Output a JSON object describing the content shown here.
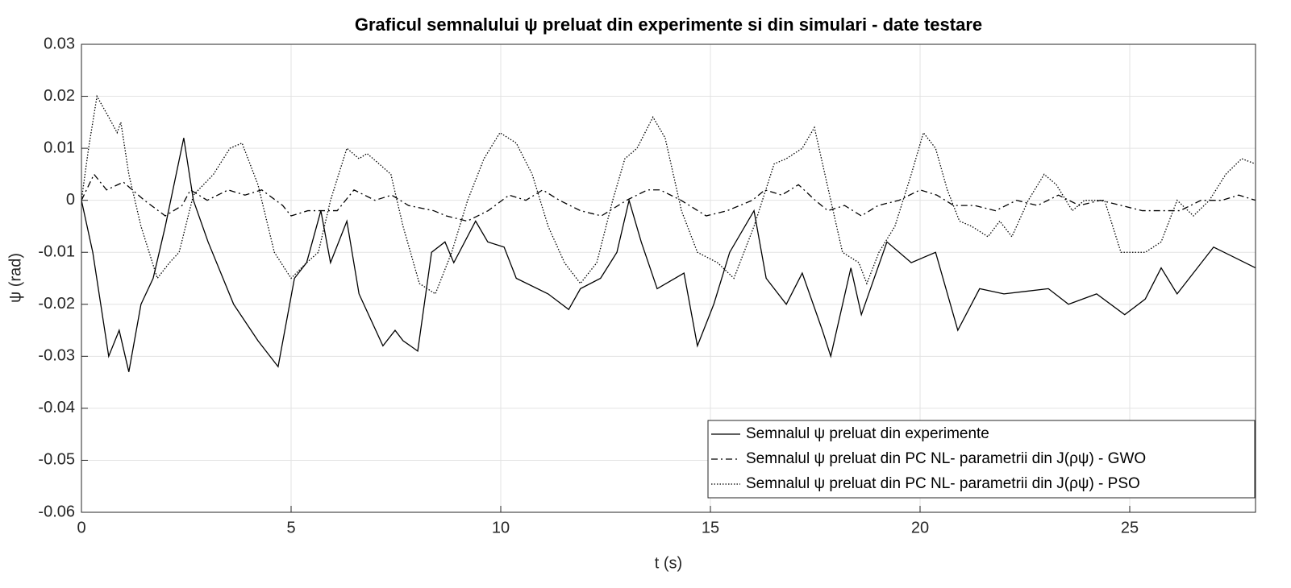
{
  "chart_data": {
    "type": "line",
    "title": "Graficul semnalului ψ preluat din experimente si din simulari - date testare",
    "xlabel": "t (s)",
    "ylabel": "ψ (rad)",
    "xlim": [
      0,
      28
    ],
    "ylim": [
      -0.06,
      0.03
    ],
    "xticks": [
      0,
      5,
      10,
      15,
      20,
      25
    ],
    "yticks": [
      -0.06,
      -0.05,
      -0.04,
      -0.03,
      -0.02,
      -0.01,
      0,
      0.01,
      0.02,
      0.03
    ],
    "grid": true,
    "legend": "lower right",
    "series": [
      {
        "name": "Semnalul ψ preluat din experimente",
        "color": "#000000",
        "linestyle": "solid",
        "x": [
          0,
          0.27,
          0.65,
          0.9,
          1.13,
          1.42,
          1.71,
          2.0,
          2.44,
          2.67,
          3.02,
          3.63,
          4.21,
          4.69,
          5.08,
          5.37,
          5.71,
          5.94,
          6.33,
          6.62,
          7.19,
          7.48,
          7.67,
          8.02,
          8.35,
          8.67,
          8.88,
          9.4,
          9.69,
          10.08,
          10.37,
          11.13,
          11.62,
          11.9,
          12.38,
          12.77,
          13.06,
          13.35,
          13.73,
          14.37,
          14.69,
          15.08,
          15.46,
          16.04,
          16.33,
          16.81,
          17.19,
          17.67,
          17.87,
          18.35,
          18.6,
          19.21,
          19.79,
          20.37,
          20.9,
          21.42,
          22.0,
          23.06,
          23.54,
          24.21,
          24.88,
          25.37,
          25.75,
          26.13,
          27.0,
          28
        ],
        "values": [
          0,
          -0.01,
          -0.03,
          -0.025,
          -0.033,
          -0.02,
          -0.015,
          -0.005,
          0.012,
          0.0,
          -0.008,
          -0.02,
          -0.027,
          -0.032,
          -0.015,
          -0.012,
          -0.002,
          -0.012,
          -0.004,
          -0.018,
          -0.028,
          -0.025,
          -0.027,
          -0.029,
          -0.01,
          -0.008,
          -0.012,
          -0.004,
          -0.008,
          -0.009,
          -0.015,
          -0.018,
          -0.021,
          -0.017,
          -0.015,
          -0.01,
          0.0,
          -0.008,
          -0.017,
          -0.014,
          -0.028,
          -0.02,
          -0.01,
          -0.002,
          -0.015,
          -0.02,
          -0.014,
          -0.025,
          -0.03,
          -0.013,
          -0.022,
          -0.008,
          -0.012,
          -0.01,
          -0.025,
          -0.017,
          -0.018,
          -0.017,
          -0.02,
          -0.018,
          -0.022,
          -0.019,
          -0.013,
          -0.018,
          -0.009,
          -0.013
        ]
      },
      {
        "name": "Semnalul ψ preluat din PC NL- parametrii din J(ρψ) - GWO",
        "color": "#000000",
        "linestyle": "dashdot",
        "x": [
          0,
          0.3,
          0.6,
          1.0,
          1.5,
          2.0,
          2.4,
          2.6,
          3.0,
          3.5,
          3.9,
          4.3,
          4.8,
          5.0,
          5.4,
          6.1,
          6.5,
          7.0,
          7.4,
          7.8,
          8.4,
          8.7,
          9.2,
          9.7,
          10.2,
          10.6,
          11.0,
          11.4,
          11.9,
          12.4,
          13.0,
          13.5,
          13.8,
          14.3,
          14.9,
          15.4,
          16.0,
          16.3,
          16.7,
          17.1,
          17.5,
          17.8,
          18.2,
          18.6,
          19.0,
          19.5,
          20.0,
          20.4,
          20.8,
          21.3,
          21.8,
          22.3,
          22.8,
          23.3,
          23.8,
          24.3,
          24.8,
          25.3,
          25.8,
          26.2,
          26.7,
          27.2,
          27.6,
          28
        ],
        "values": [
          0,
          0.005,
          0.002,
          0.0035,
          0.0,
          -0.003,
          -0.001,
          0.002,
          0.0,
          0.002,
          0.001,
          0.002,
          -0.001,
          -0.003,
          -0.002,
          -0.002,
          0.002,
          0.0,
          0.001,
          -0.001,
          -0.002,
          -0.003,
          -0.004,
          -0.002,
          0.001,
          0.0,
          0.002,
          0.0,
          -0.002,
          -0.003,
          0.0,
          0.002,
          0.002,
          0.0,
          -0.003,
          -0.002,
          0.0,
          0.002,
          0.001,
          0.003,
          0.0,
          -0.002,
          -0.001,
          -0.003,
          -0.001,
          0.0,
          0.002,
          0.001,
          -0.001,
          -0.001,
          -0.002,
          0.0,
          -0.001,
          0.001,
          -0.001,
          0.0,
          -0.001,
          -0.002,
          -0.002,
          -0.002,
          0.0,
          0.0,
          0.001,
          0.0
        ]
      },
      {
        "name": "Semnalul ψ preluat din PC NL- parametrii din J(ρψ) - PSO",
        "color": "#000000",
        "linestyle": "dotted",
        "x": [
          0,
          0.17,
          0.37,
          0.65,
          0.85,
          0.94,
          1.13,
          1.42,
          1.81,
          2.1,
          2.33,
          2.67,
          3.15,
          3.54,
          3.83,
          4.21,
          4.6,
          5.0,
          5.37,
          5.65,
          5.94,
          6.33,
          6.62,
          6.81,
          7.1,
          7.38,
          7.67,
          8.06,
          8.44,
          8.83,
          9.21,
          9.6,
          9.98,
          10.37,
          10.75,
          11.13,
          11.52,
          11.9,
          12.29,
          12.67,
          12.96,
          13.25,
          13.63,
          13.92,
          14.31,
          14.69,
          15.17,
          15.56,
          16.04,
          16.52,
          16.81,
          17.19,
          17.48,
          17.87,
          18.15,
          18.54,
          18.73,
          19.02,
          19.4,
          19.79,
          20.08,
          20.37,
          20.65,
          20.94,
          21.23,
          21.62,
          21.9,
          22.19,
          22.58,
          22.96,
          23.25,
          23.63,
          23.92,
          24.4,
          24.79,
          25.37,
          25.75,
          26.13,
          26.52,
          26.9,
          27.29,
          27.67,
          28
        ],
        "values": [
          0,
          0.01,
          0.02,
          0.016,
          0.013,
          0.015,
          0.005,
          -0.005,
          -0.015,
          -0.012,
          -0.01,
          0.001,
          0.005,
          0.01,
          0.011,
          0.003,
          -0.01,
          -0.015,
          -0.012,
          -0.01,
          0.0,
          0.01,
          0.008,
          0.009,
          0.007,
          0.005,
          -0.005,
          -0.016,
          -0.018,
          -0.01,
          0.0,
          0.008,
          0.013,
          0.011,
          0.005,
          -0.005,
          -0.012,
          -0.016,
          -0.012,
          0.0,
          0.008,
          0.01,
          0.016,
          0.012,
          -0.002,
          -0.01,
          -0.012,
          -0.015,
          -0.005,
          0.007,
          0.008,
          0.01,
          0.014,
          0.0,
          -0.01,
          -0.012,
          -0.016,
          -0.01,
          -0.005,
          0.005,
          0.013,
          0.01,
          0.002,
          -0.004,
          -0.005,
          -0.007,
          -0.004,
          -0.007,
          0.0,
          0.005,
          0.003,
          -0.002,
          0.0,
          0.0,
          -0.01,
          -0.01,
          -0.008,
          0.0,
          -0.003,
          0.0,
          0.005,
          0.008,
          0.007
        ]
      }
    ]
  }
}
